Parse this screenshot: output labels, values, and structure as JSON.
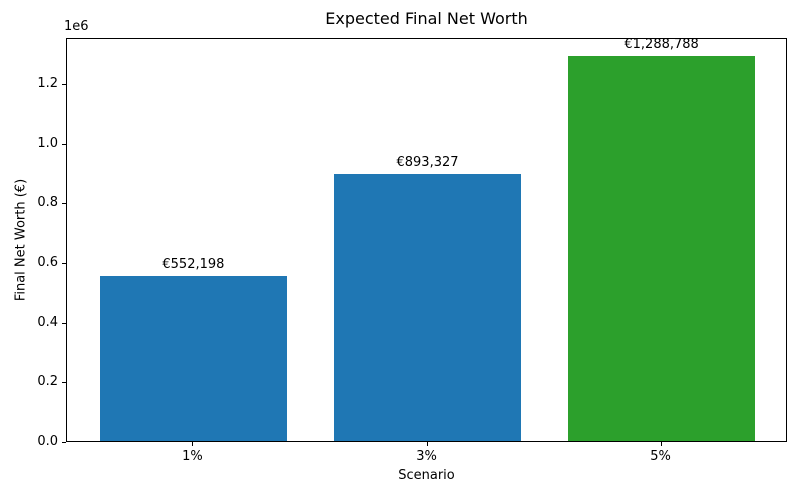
{
  "chart_data": {
    "type": "bar",
    "title": "Expected Final Net Worth",
    "xlabel": "Scenario",
    "ylabel": "Final Net Worth (€)",
    "categories": [
      "1%",
      "3%",
      "5%"
    ],
    "values": [
      552198,
      893327,
      1288788
    ],
    "bar_value_labels": [
      "€552,198",
      "€893,327",
      "€1,288,788"
    ],
    "bar_colors": [
      "#1f77b4",
      "#1f77b4",
      "#2ca02c"
    ],
    "ylim": [
      0,
      1353227
    ],
    "yticks": [
      0,
      200000,
      400000,
      600000,
      800000,
      1000000,
      1200000
    ],
    "ytick_labels": [
      "0.0",
      "0.2",
      "0.4",
      "0.6",
      "0.8",
      "1.0",
      "1.2"
    ],
    "y_offset_label": "1e6",
    "grid": false,
    "legend_position": "none"
  }
}
